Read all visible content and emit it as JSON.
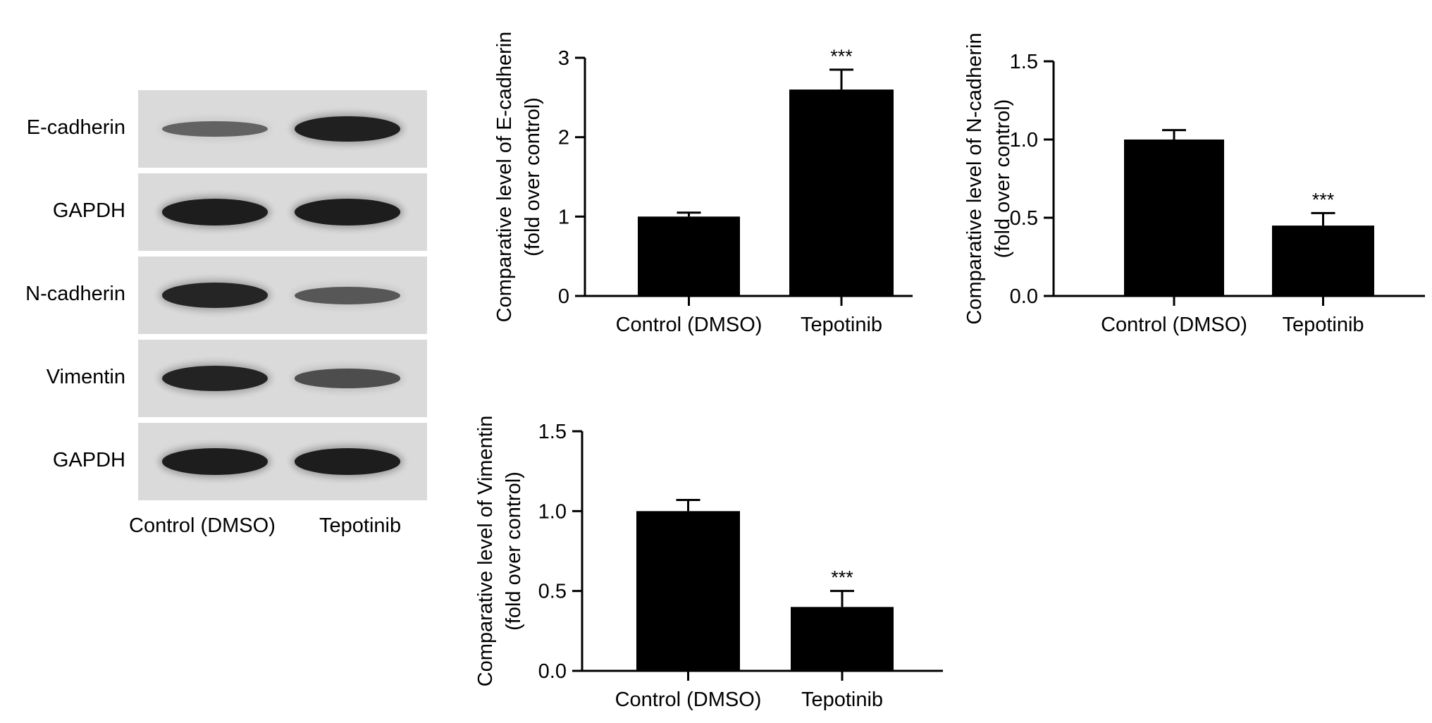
{
  "blot": {
    "rows": [
      {
        "label": "E-cadherin",
        "bands": [
          0.42,
          0.95
        ]
      },
      {
        "label": "GAPDH",
        "bands": [
          0.97,
          0.97
        ]
      },
      {
        "label": "N-cadherin",
        "bands": [
          0.9,
          0.5
        ]
      },
      {
        "label": "Vimentin",
        "bands": [
          0.92,
          0.58
        ]
      },
      {
        "label": "GAPDH",
        "bands": [
          0.97,
          0.97
        ]
      }
    ],
    "lanes": [
      "Control (DMSO)",
      "Tepotinib"
    ]
  },
  "chart_data": [
    {
      "type": "bar",
      "categories": [
        "Control (DMSO)",
        "Tepotinib"
      ],
      "values": [
        1.0,
        2.6
      ],
      "errors": [
        0.05,
        0.25
      ],
      "annotations": [
        "",
        "***"
      ],
      "ylabel": [
        "Comparative level of E-cadherin",
        "(fold over control)"
      ],
      "ylim": [
        0,
        3
      ],
      "yticks": [
        0,
        1,
        2,
        3
      ],
      "ytick_labels": [
        "0",
        "1",
        "2",
        "3"
      ]
    },
    {
      "type": "bar",
      "categories": [
        "Control (DMSO)",
        "Tepotinib"
      ],
      "values": [
        1.0,
        0.45
      ],
      "errors": [
        0.06,
        0.08
      ],
      "annotations": [
        "",
        "***"
      ],
      "ylabel": [
        "Comparative level of N-cadherin",
        "(fold over control)"
      ],
      "ylim": [
        0,
        1.5
      ],
      "yticks": [
        0,
        0.5,
        1.0,
        1.5
      ],
      "ytick_labels": [
        "0.0",
        "0.5",
        "1.0",
        "1.5"
      ]
    },
    {
      "type": "bar",
      "categories": [
        "Control (DMSO)",
        "Tepotinib"
      ],
      "values": [
        1.0,
        0.4
      ],
      "errors": [
        0.07,
        0.1
      ],
      "annotations": [
        "",
        "***"
      ],
      "ylabel": [
        "Comparative level of Vimentin",
        "(fold over control)"
      ],
      "ylim": [
        0,
        1.5
      ],
      "yticks": [
        0,
        0.5,
        1.0,
        1.5
      ],
      "ytick_labels": [
        "0.0",
        "0.5",
        "1.0",
        "1.5"
      ]
    }
  ]
}
